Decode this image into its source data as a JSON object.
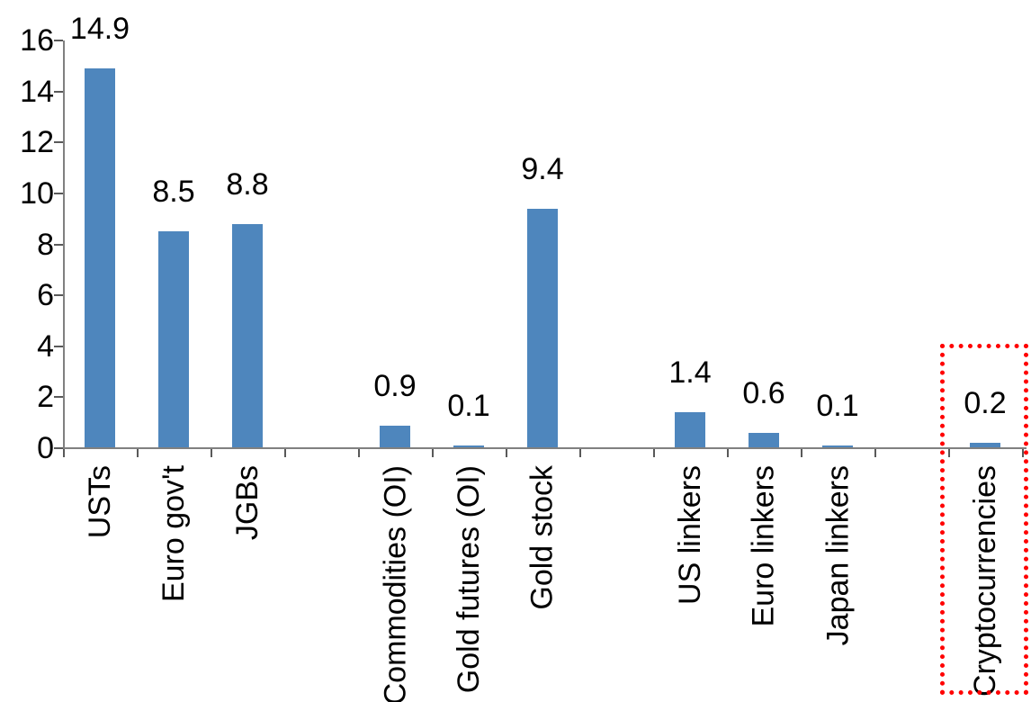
{
  "chart_data": {
    "type": "bar",
    "title": "",
    "xlabel": "",
    "ylabel": "",
    "categories": [
      "USTs",
      "Euro gov't",
      "JGBs",
      "Commodities (OI)",
      "Gold futures (OI)",
      "Gold stock",
      "US linkers",
      "Euro linkers",
      "Japan linkers",
      "Cryptocurrencies"
    ],
    "values": [
      14.9,
      8.5,
      8.8,
      0.9,
      0.1,
      9.4,
      1.4,
      0.6,
      0.1,
      0.2
    ],
    "value_labels": [
      "14.9",
      "8.5",
      "8.8",
      "0.9",
      "0.1",
      "9.4",
      "1.4",
      "0.6",
      "0.1",
      "0.2"
    ],
    "slots": [
      0,
      1,
      2,
      4,
      5,
      6,
      8,
      9,
      10,
      12
    ],
    "total_slots": 13,
    "ylim": [
      0,
      16
    ],
    "yticks": [
      0,
      2,
      4,
      6,
      8,
      10,
      12,
      14,
      16
    ],
    "grid": false,
    "legend": false,
    "bar_color": "#4E86BD",
    "axis_color": "#808080",
    "tick_color": "#595959",
    "text_color": "#000000",
    "highlight": {
      "category": "Cryptocurrencies",
      "shape": "dotted-rectangle",
      "color": "#FF0000"
    }
  }
}
